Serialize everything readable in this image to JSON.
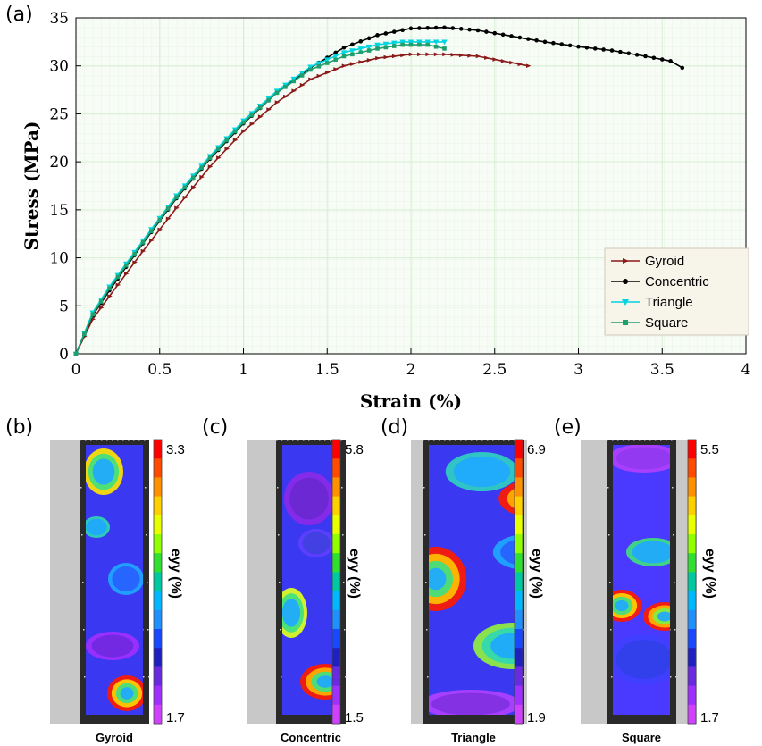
{
  "panel_letters": {
    "a": "(a)",
    "b": "(b)",
    "c": "(c)",
    "d": "(d)",
    "e": "(e)"
  },
  "chart_data": {
    "type": "line",
    "xlabel": "Strain (%)",
    "ylabel": "Stress (MPa)",
    "xlim": [
      0,
      4
    ],
    "ylim": [
      0,
      35
    ],
    "xticks": [
      0,
      0.5,
      1,
      1.5,
      2,
      2.5,
      3,
      3.5,
      4
    ],
    "xtick_labels": [
      "0",
      "0.5",
      "1",
      "1.5",
      "2",
      "2.5",
      "3",
      "3.5",
      "4"
    ],
    "yticks": [
      0,
      5,
      10,
      15,
      20,
      25,
      30,
      35
    ],
    "ytick_labels": [
      "0",
      "5",
      "10",
      "15",
      "20",
      "25",
      "30",
      "35"
    ],
    "grid": true,
    "legend_position": "bottom-right",
    "series": [
      {
        "name": "Gyroid",
        "color": "#8b1a1a",
        "marker": "triangle-right",
        "x": [
          0,
          0.1,
          0.2,
          0.4,
          0.6,
          0.8,
          1.0,
          1.2,
          1.4,
          1.6,
          1.8,
          2.0,
          2.2,
          2.4,
          2.55,
          2.7
        ],
        "y": [
          0,
          3.6,
          6.0,
          10.7,
          15.2,
          19.5,
          23.2,
          26.2,
          28.6,
          30.0,
          30.8,
          31.2,
          31.2,
          31.0,
          30.5,
          30.0
        ]
      },
      {
        "name": "Concentric",
        "color": "#000000",
        "marker": "circle",
        "x": [
          0,
          0.1,
          0.2,
          0.4,
          0.6,
          0.8,
          1.0,
          1.2,
          1.4,
          1.6,
          1.8,
          2.0,
          2.2,
          2.4,
          2.6,
          2.8,
          3.0,
          3.2,
          3.4,
          3.55,
          3.62
        ],
        "y": [
          0,
          4.0,
          6.6,
          11.5,
          16.2,
          20.3,
          24.0,
          27.2,
          29.8,
          31.9,
          33.2,
          33.9,
          34.0,
          33.7,
          33.1,
          32.5,
          32.0,
          31.6,
          31.0,
          30.5,
          29.8
        ]
      },
      {
        "name": "Triangle",
        "color": "#00d4e0",
        "marker": "triangle-down",
        "x": [
          0,
          0.1,
          0.2,
          0.4,
          0.6,
          0.8,
          1.0,
          1.2,
          1.4,
          1.6,
          1.8,
          1.95,
          2.1,
          2.2
        ],
        "y": [
          0,
          4.3,
          7.0,
          11.8,
          16.5,
          20.6,
          24.3,
          27.4,
          29.9,
          31.4,
          32.2,
          32.5,
          32.5,
          32.5
        ]
      },
      {
        "name": "Square",
        "color": "#1f9e6e",
        "marker": "square",
        "x": [
          0,
          0.1,
          0.2,
          0.4,
          0.6,
          0.8,
          1.0,
          1.2,
          1.4,
          1.6,
          1.8,
          1.95,
          2.1,
          2.2
        ],
        "y": [
          0,
          4.1,
          6.8,
          11.6,
          16.3,
          20.4,
          24.1,
          27.2,
          29.6,
          31.0,
          31.8,
          32.2,
          32.2,
          31.8
        ]
      }
    ]
  },
  "dic_panels": [
    {
      "letter": "(b)",
      "caption": "Gyroid",
      "colorbar_max": "3.3",
      "colorbar_min": "1.7",
      "colorbar_title": "eyy (%)"
    },
    {
      "letter": "(c)",
      "caption": "Concentric",
      "colorbar_max": "5.8",
      "colorbar_min": "1.5",
      "colorbar_title": "eyy (%)"
    },
    {
      "letter": "(d)",
      "caption": "Triangle",
      "colorbar_max": "6.9",
      "colorbar_min": "1.9",
      "colorbar_title": "eyy (%)"
    },
    {
      "letter": "(e)",
      "caption": "Square",
      "colorbar_max": "5.5",
      "colorbar_min": "1.7",
      "colorbar_title": "eyy (%)"
    }
  ],
  "colorbar_colors": [
    "#ff0000",
    "#ff4a00",
    "#ff9000",
    "#ffd000",
    "#e8ff00",
    "#90ff00",
    "#30e030",
    "#00c8a0",
    "#00b8ff",
    "#2090ff",
    "#1848ff",
    "#2020c0",
    "#6a2ae0",
    "#a030ff",
    "#d040ff"
  ]
}
